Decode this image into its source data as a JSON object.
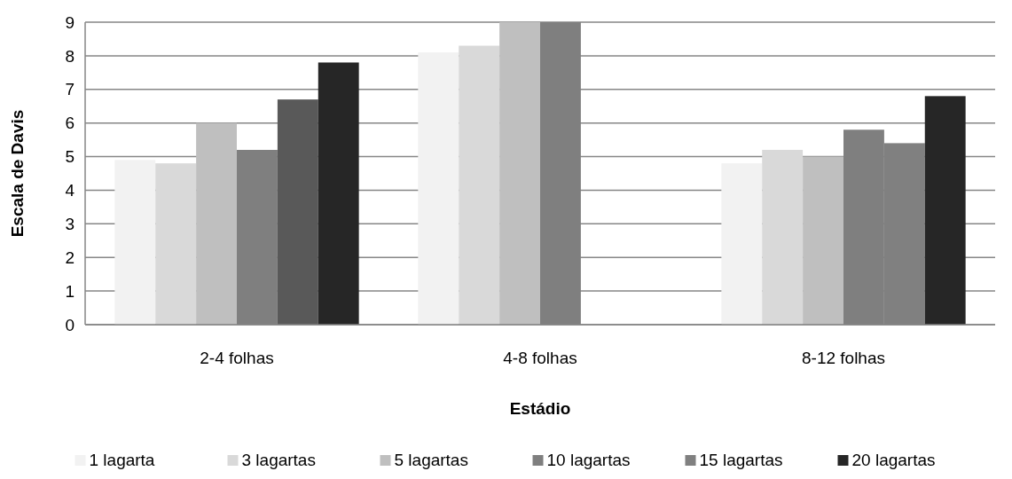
{
  "chart_data": {
    "type": "bar",
    "xlabel": "Estádio",
    "ylabel": "Escala de Davis",
    "categories": [
      "2-4 folhas",
      "4-8 folhas",
      "8-12 folhas"
    ],
    "series": [
      {
        "name": "1 lagarta",
        "color": "#f2f2f2",
        "values": [
          4.9,
          8.1,
          4.8
        ]
      },
      {
        "name": "3 lagartas",
        "color": "#d9d9d9",
        "values": [
          4.8,
          8.3,
          5.2
        ]
      },
      {
        "name": "5 lagartas",
        "color": "#bfbfbf",
        "values": [
          6.0,
          9,
          5.0
        ]
      },
      {
        "name": "10 lagartas",
        "color": "#7f7f7f",
        "values": [
          5.2,
          9,
          5.8
        ]
      },
      {
        "name": "15 lagartas",
        "color": "#808080",
        "colors": [
          "#595959",
          null,
          "#808080"
        ],
        "values": [
          6.7,
          null,
          5.4
        ]
      },
      {
        "name": "20 lagartas",
        "color": "#262626",
        "values": [
          7.8,
          null,
          6.8
        ]
      }
    ],
    "ylim": [
      0,
      9
    ],
    "yticks": [
      0,
      1,
      2,
      3,
      4,
      5,
      6,
      7,
      8,
      9
    ],
    "grid": "y",
    "legend": "bottom"
  }
}
